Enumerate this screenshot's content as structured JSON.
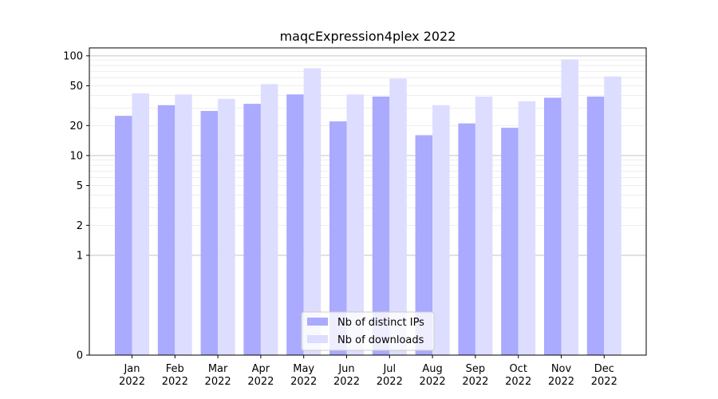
{
  "chart_data": {
    "type": "bar",
    "title": "maqcExpression4plex 2022",
    "xlabel": "",
    "ylabel": "",
    "yscale": "symlog",
    "categories": [
      [
        "Jan",
        "2022"
      ],
      [
        "Feb",
        "2022"
      ],
      [
        "Mar",
        "2022"
      ],
      [
        "Apr",
        "2022"
      ],
      [
        "May",
        "2022"
      ],
      [
        "Jun",
        "2022"
      ],
      [
        "Jul",
        "2022"
      ],
      [
        "Aug",
        "2022"
      ],
      [
        "Sep",
        "2022"
      ],
      [
        "Oct",
        "2022"
      ],
      [
        "Nov",
        "2022"
      ],
      [
        "Dec",
        "2022"
      ]
    ],
    "yticks": [
      "0",
      "1",
      "2",
      "5",
      "10",
      "20",
      "50",
      "100"
    ],
    "ylim": [
      0,
      120
    ],
    "grid": "horizontal major and minor lines",
    "legend_position": "bottom-center",
    "series": [
      {
        "name": "Nb of distinct IPs",
        "color": "#aaaaff",
        "values": [
          25,
          32,
          28,
          33,
          41,
          22,
          39,
          16,
          21,
          19,
          38,
          39
        ]
      },
      {
        "name": "Nb of downloads",
        "color": "#ddddff",
        "values": [
          42,
          41,
          37,
          52,
          75,
          41,
          59,
          32,
          39,
          35,
          92,
          62
        ]
      }
    ]
  }
}
